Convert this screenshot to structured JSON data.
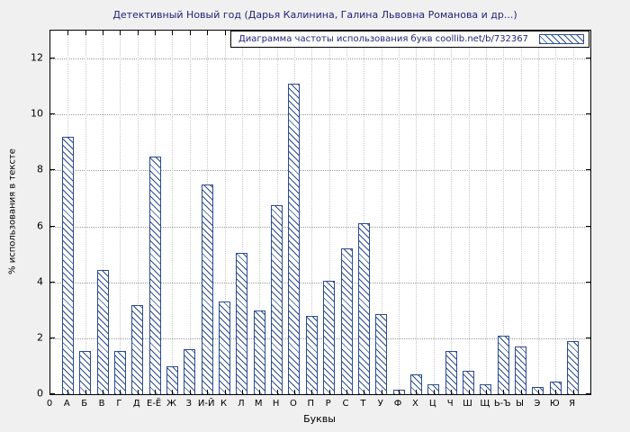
{
  "chart_data": {
    "type": "bar",
    "title": "Детективный Новый год (Дарья Калинина, Галина Львовна Романова и др...)",
    "legend": "Диаграмма частоты использования букв coollib.net/b/732367",
    "xlabel": "Буквы",
    "ylabel": "% использования в тексте",
    "origin_label": "0",
    "categories": [
      "А",
      "Б",
      "В",
      "Г",
      "Д",
      "Е-Ё",
      "Ж",
      "З",
      "И-Й",
      "К",
      "Л",
      "М",
      "Н",
      "О",
      "П",
      "Р",
      "С",
      "Т",
      "У",
      "Ф",
      "Х",
      "Ц",
      "Ч",
      "Ш",
      "Щ",
      "Ь-Ъ",
      "Ы",
      "Э",
      "Ю",
      "Я"
    ],
    "values": [
      9.2,
      1.55,
      4.45,
      1.55,
      3.2,
      8.5,
      1.0,
      1.6,
      7.5,
      3.3,
      5.05,
      3.0,
      6.75,
      11.1,
      2.8,
      4.05,
      5.2,
      6.1,
      2.85,
      0.15,
      0.7,
      0.35,
      1.55,
      0.85,
      0.35,
      2.1,
      1.7,
      0.25,
      0.45,
      1.9
    ],
    "yticks": [
      0,
      2,
      4,
      6,
      8,
      10,
      12
    ],
    "ylim": [
      0,
      13
    ],
    "grid": true,
    "legend_position": "top-right",
    "colors": {
      "bar": "#2b4b8f",
      "title_text": "#22227a",
      "legend_text": "#22227a",
      "background": "#f0f0f0",
      "plot_background": "#ffffff",
      "grid": "#9a9a9a"
    }
  }
}
